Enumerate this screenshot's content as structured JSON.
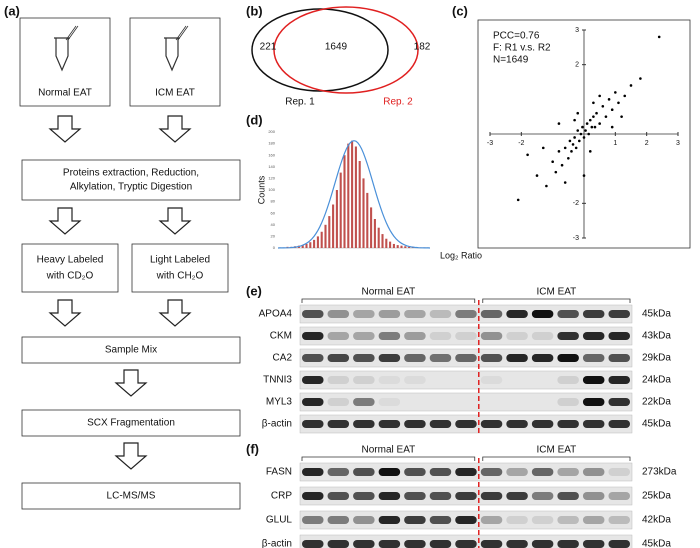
{
  "panel_a": {
    "label": "(a)",
    "samples": [
      "Normal EAT",
      "ICM EAT"
    ],
    "step1": [
      "Proteins extraction, Reduction,",
      "Alkylation, Tryptic Digestion"
    ],
    "heavy": [
      "Heavy Labeled",
      "with CD₂O"
    ],
    "light": [
      "Light Labeled",
      "with CH₂O"
    ],
    "step2": "Sample Mix",
    "step3": "SCX Fragmentation",
    "step4": "LC-MS/MS"
  },
  "venn": {
    "label": "(b)",
    "only_1": "221",
    "both": "1649",
    "only_2": "182",
    "set_1": "Rep. 1",
    "set_2": "Rep. 2"
  },
  "chart_data": [
    {
      "type": "scatter",
      "label": "(c)",
      "annotations": [
        "PCC=0.76",
        "F: R1 v.s. R2",
        "N=1649"
      ],
      "xlim": [
        -3,
        3
      ],
      "ylim": [
        -3,
        3
      ],
      "xticks": [
        -3,
        -2,
        1,
        2,
        3
      ],
      "yticks": [
        -3,
        -2,
        2,
        3
      ],
      "color": "#000000",
      "x": [
        -1.5,
        -1.2,
        -1,
        -0.9,
        -0.8,
        -0.7,
        -0.6,
        -0.5,
        -0.45,
        -0.4,
        -0.35,
        -0.3,
        -0.25,
        -0.2,
        -0.15,
        -0.1,
        -0.05,
        0,
        0.05,
        0.1,
        0.15,
        0.2,
        0.25,
        0.3,
        0.35,
        0.4,
        0.5,
        0.6,
        0.7,
        0.8,
        0.9,
        1,
        1.1,
        1.3,
        1.5,
        -2.1,
        -1.8,
        0.5,
        -0.3,
        0.2,
        1.8,
        2.4,
        -0.6,
        0.9,
        -1.3,
        0.3,
        -0.8,
        1.2,
        0,
        -0.2
      ],
      "y": [
        -1.2,
        -1.5,
        -0.8,
        -1.1,
        -0.5,
        -0.9,
        -0.4,
        -0.7,
        -0.2,
        -0.5,
        -0.3,
        -0.1,
        -0.4,
        0.1,
        -0.2,
        0,
        0.2,
        -0.1,
        0.1,
        0.3,
        0,
        0.4,
        0.2,
        0.5,
        0.2,
        0.6,
        0.3,
        0.8,
        0.5,
        1,
        0.7,
        1.2,
        0.9,
        1.1,
        1.4,
        -1.9,
        -0.6,
        1.1,
        0.4,
        -0.5,
        1.6,
        2.8,
        -1.4,
        0.2,
        -0.4,
        0.9,
        0.3,
        0.5,
        -1.2,
        0.6
      ]
    },
    {
      "type": "histogram",
      "label": "(d)",
      "ylabel": "Counts",
      "xlabel": "Log₂ Ratio",
      "bins": [
        -4,
        -3.8,
        -3.6,
        -3.4,
        -3.2,
        -3,
        -2.8,
        -2.6,
        -2.4,
        -2.2,
        -2,
        -1.8,
        -1.6,
        -1.4,
        -1.2,
        -1,
        -0.8,
        -0.6,
        -0.4,
        -0.2,
        0,
        0.2,
        0.4,
        0.6,
        0.8,
        1,
        1.2,
        1.4,
        1.6,
        1.8,
        2,
        2.2,
        2.4,
        2.6,
        2.8,
        3,
        3.2,
        3.4,
        3.6,
        3.8,
        4
      ],
      "values": [
        1,
        1,
        2,
        2,
        3,
        4,
        5,
        7,
        10,
        14,
        20,
        28,
        40,
        55,
        75,
        100,
        130,
        160,
        180,
        185,
        175,
        150,
        120,
        95,
        70,
        50,
        35,
        24,
        16,
        11,
        7,
        5,
        4,
        3,
        2,
        2,
        1,
        1,
        1,
        1
      ],
      "xlim": [
        -4,
        4
      ],
      "ylim": [
        0,
        200
      ],
      "yticks": [
        0,
        20,
        40,
        60,
        80,
        100,
        120,
        140,
        160,
        180,
        200
      ],
      "color": "#c0504d",
      "fit": {
        "mean": 0,
        "sd": 1,
        "peak": 185,
        "color": "#4a90d9"
      }
    }
  ],
  "blots": [
    {
      "label": "(e)",
      "groups": [
        "Normal EAT",
        "ICM EAT"
      ],
      "rows": [
        {
          "name": "APOA4",
          "size": "45kDa",
          "bands": [
            0.7,
            0.4,
            0.3,
            0.35,
            0.3,
            0.2,
            0.5,
            0.6,
            0.9,
            1,
            0.7,
            0.8,
            0.8
          ]
        },
        {
          "name": "CKM",
          "size": "43kDa",
          "bands": [
            0.9,
            0.3,
            0.3,
            0.5,
            0.35,
            0.1,
            0.1,
            0.4,
            0.1,
            0.1,
            0.85,
            0.9,
            0.9
          ]
        },
        {
          "name": "CA2",
          "size": "29kDa",
          "bands": [
            0.7,
            0.75,
            0.7,
            0.8,
            0.6,
            0.55,
            0.6,
            0.7,
            0.9,
            0.9,
            1,
            0.6,
            0.7
          ]
        },
        {
          "name": "TNNI3",
          "size": "24kDa",
          "bands": [
            0.9,
            0.1,
            0.1,
            0.05,
            0.05,
            0,
            0,
            0.05,
            0,
            0,
            0.1,
            1,
            0.9
          ]
        },
        {
          "name": "MYL3",
          "size": "22kDa",
          "bands": [
            0.9,
            0.1,
            0.5,
            0.05,
            0,
            0,
            0,
            0,
            0,
            0,
            0.1,
            1,
            0.85
          ]
        },
        {
          "name": "β-actin",
          "size": "45kDa",
          "bands": [
            0.85,
            0.85,
            0.85,
            0.85,
            0.85,
            0.85,
            0.85,
            0.85,
            0.85,
            0.85,
            0.85,
            0.85,
            0.85
          ]
        }
      ]
    },
    {
      "label": "(f)",
      "groups": [
        "Normal EAT",
        "ICM EAT"
      ],
      "rows": [
        {
          "name": "FASN",
          "size": "273kDa",
          "bands": [
            0.9,
            0.6,
            0.7,
            1,
            0.7,
            0.7,
            0.9,
            0.6,
            0.3,
            0.6,
            0.3,
            0.4,
            0.1
          ]
        },
        {
          "name": "CRP",
          "size": "25kDa",
          "bands": [
            0.9,
            0.7,
            0.7,
            0.9,
            0.7,
            0.7,
            0.8,
            0.8,
            0.8,
            0.5,
            0.7,
            0.4,
            0.3
          ]
        },
        {
          "name": "GLUL",
          "size": "42kDa",
          "bands": [
            0.5,
            0.5,
            0.4,
            0.9,
            0.8,
            0.7,
            0.9,
            0.3,
            0.1,
            0.1,
            0.2,
            0.3,
            0.2
          ]
        },
        {
          "name": "β-actin",
          "size": "45kDa",
          "bands": [
            0.85,
            0.85,
            0.85,
            0.85,
            0.85,
            0.85,
            0.85,
            0.85,
            0.85,
            0.85,
            0.85,
            0.85,
            0.85
          ]
        }
      ]
    }
  ]
}
